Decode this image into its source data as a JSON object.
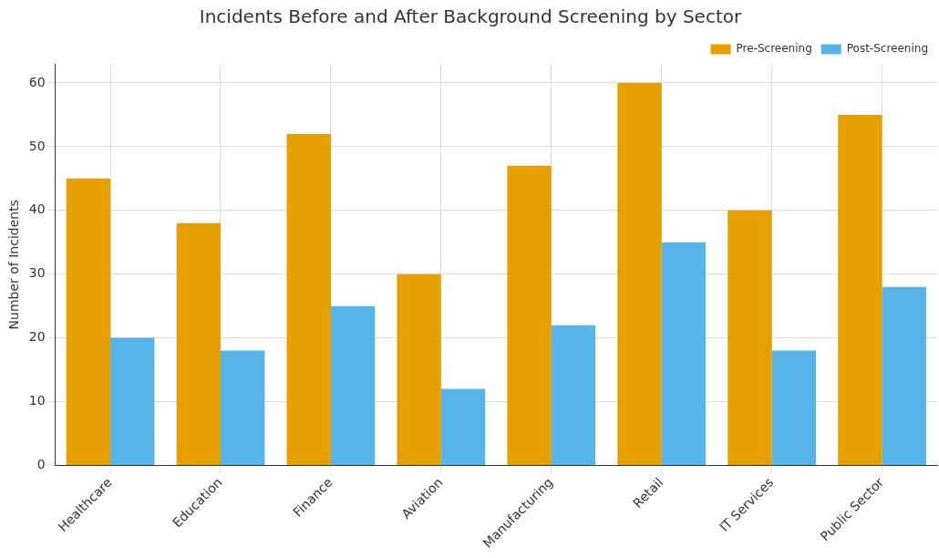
{
  "chart_data": {
    "type": "bar",
    "title": "Incidents Before and After Background Screening by Sector",
    "ylabel": "Number of Incidents",
    "categories": [
      "Healthcare",
      "Education",
      "Finance",
      "Aviation",
      "Manufacturing",
      "Retail",
      "IT Services",
      "Public Sector"
    ],
    "series": [
      {
        "name": "Pre-Screening",
        "color": "#e69f00",
        "values": [
          45,
          38,
          52,
          30,
          47,
          60,
          40,
          55
        ]
      },
      {
        "name": "Post-Screening",
        "color": "#56b4e9",
        "values": [
          20,
          18,
          25,
          12,
          22,
          35,
          18,
          28
        ]
      }
    ],
    "ylim": [
      0,
      63
    ],
    "yticks": [
      0,
      10,
      20,
      30,
      40,
      50,
      60
    ],
    "grid": true,
    "legend": "top right"
  }
}
